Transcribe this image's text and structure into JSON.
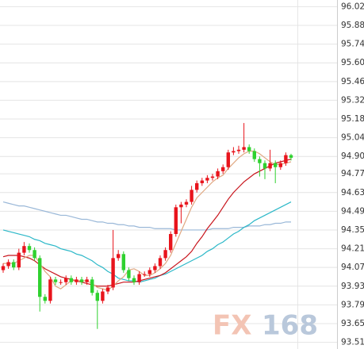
{
  "chart_data": {
    "type": "candlestick",
    "ylim": [
      93.46,
      96.07
    ],
    "yticks": [
      96.02,
      95.88,
      95.74,
      {
        "value": 95.6,
        "label": "95.60"
      },
      95.46,
      95.32,
      95.18,
      95.04,
      {
        "value": 94.9,
        "label": "94.90"
      },
      94.77,
      94.63,
      94.49,
      94.35,
      94.21,
      94.07,
      93.93,
      93.79,
      93.65,
      93.51
    ],
    "grid": true,
    "up_color": "#e8141c",
    "down_color": "#2fd12f",
    "open": [
      94.05,
      94.08,
      94.11,
      94.07,
      94.18,
      94.23,
      94.2,
      94.14,
      93.85,
      93.82,
      93.98,
      93.96,
      93.96,
      93.99,
      93.96,
      93.98,
      93.96,
      93.98,
      93.88,
      93.82,
      93.89,
      93.92,
      94.14,
      94.17,
      94.05,
      93.99,
      93.96,
      94.02,
      94.02,
      94.05,
      94.08,
      94.14,
      94.2,
      94.32,
      94.52,
      94.54,
      94.56,
      94.65,
      94.7,
      94.72,
      94.74,
      94.75,
      94.79,
      94.82,
      94.93,
      94.94,
      94.95,
      94.97,
      94.94,
      94.88,
      94.85,
      94.81,
      94.85,
      94.82,
      94.85,
      94.91
    ],
    "high": [
      94.1,
      94.13,
      94.13,
      94.21,
      94.26,
      94.25,
      94.22,
      94.16,
      93.87,
      94.0,
      94.0,
      93.98,
      94.01,
      94.01,
      94.0,
      94.0,
      94.0,
      94.0,
      93.9,
      93.91,
      93.94,
      94.35,
      94.2,
      94.19,
      94.07,
      94.01,
      94.04,
      94.04,
      94.07,
      94.1,
      94.16,
      94.22,
      94.34,
      94.54,
      94.56,
      94.58,
      94.68,
      94.72,
      94.74,
      94.76,
      94.77,
      94.81,
      94.84,
      94.95,
      94.97,
      94.98,
      95.15,
      94.99,
      94.96,
      94.9,
      94.87,
      94.95,
      94.87,
      94.87,
      94.93,
      94.92
    ],
    "low": [
      94.03,
      94.06,
      94.05,
      94.05,
      94.16,
      94.18,
      94.12,
      93.74,
      93.8,
      93.8,
      93.94,
      93.94,
      93.94,
      93.94,
      93.94,
      93.94,
      93.94,
      93.86,
      93.61,
      93.8,
      93.87,
      93.9,
      94.12,
      94.03,
      93.97,
      93.94,
      93.94,
      94.0,
      94.0,
      94.03,
      94.06,
      94.12,
      94.18,
      94.3,
      94.4,
      94.52,
      94.54,
      94.63,
      94.68,
      94.7,
      94.72,
      94.73,
      94.77,
      94.8,
      94.91,
      94.92,
      94.93,
      94.92,
      94.86,
      94.75,
      94.73,
      94.79,
      94.7,
      94.8,
      94.83,
      94.87
    ],
    "close": [
      94.08,
      94.11,
      94.07,
      94.18,
      94.23,
      94.2,
      94.14,
      93.85,
      93.82,
      93.98,
      93.96,
      93.96,
      93.99,
      93.96,
      93.98,
      93.96,
      93.98,
      93.88,
      93.82,
      93.89,
      93.92,
      94.14,
      94.17,
      94.05,
      93.99,
      93.96,
      94.02,
      94.02,
      94.05,
      94.08,
      94.14,
      94.2,
      94.32,
      94.52,
      94.54,
      94.56,
      94.65,
      94.7,
      94.72,
      94.74,
      94.75,
      94.79,
      94.82,
      94.93,
      94.94,
      94.95,
      94.97,
      94.94,
      94.88,
      94.85,
      94.81,
      94.85,
      94.82,
      94.85,
      94.91,
      94.89
    ],
    "ma": [
      {
        "color": "#9ab8d8",
        "values": [
          94.56,
          94.55,
          94.54,
          94.53,
          94.53,
          94.52,
          94.51,
          94.5,
          94.49,
          94.48,
          94.47,
          94.46,
          94.46,
          94.45,
          94.44,
          94.43,
          94.43,
          94.42,
          94.41,
          94.41,
          94.4,
          94.4,
          94.39,
          94.39,
          94.38,
          94.38,
          94.37,
          94.37,
          94.37,
          94.36,
          94.36,
          94.36,
          94.36,
          94.35,
          94.35,
          94.35,
          94.35,
          94.35,
          94.35,
          94.35,
          94.36,
          94.36,
          94.36,
          94.36,
          94.37,
          94.37,
          94.37,
          94.38,
          94.38,
          94.38,
          94.39,
          94.39,
          94.4,
          94.4,
          94.41,
          94.41
        ]
      },
      {
        "color": "#2cb8c8",
        "values": [
          94.35,
          94.34,
          94.33,
          94.32,
          94.31,
          94.3,
          94.28,
          94.27,
          94.25,
          94.24,
          94.23,
          94.21,
          94.2,
          94.19,
          94.17,
          94.16,
          94.14,
          94.12,
          94.09,
          94.07,
          94.04,
          94.02,
          93.99,
          93.98,
          93.97,
          93.97,
          93.96,
          93.97,
          93.98,
          93.99,
          94.01,
          94.02,
          94.04,
          94.06,
          94.08,
          94.1,
          94.12,
          94.14,
          94.16,
          94.19,
          94.21,
          94.24,
          94.26,
          94.29,
          94.32,
          94.34,
          94.37,
          94.39,
          94.42,
          94.44,
          94.46,
          94.48,
          94.5,
          94.52,
          94.54,
          94.56
        ]
      },
      {
        "color": "#c8141c",
        "values": [
          94.15,
          94.16,
          94.16,
          94.16,
          94.15,
          94.14,
          94.12,
          94.09,
          94.06,
          94.04,
          94.02,
          94.0,
          93.99,
          93.98,
          93.97,
          93.96,
          93.95,
          93.94,
          93.93,
          93.93,
          93.93,
          93.94,
          93.95,
          93.96,
          93.96,
          93.96,
          93.97,
          93.98,
          93.99,
          94.0,
          94.01,
          94.03,
          94.06,
          94.09,
          94.12,
          94.15,
          94.19,
          94.25,
          94.3,
          94.36,
          94.41,
          94.46,
          94.52,
          94.58,
          94.63,
          94.67,
          94.71,
          94.74,
          94.77,
          94.79,
          94.81,
          94.83,
          94.85,
          94.86,
          94.87,
          94.88
        ]
      },
      {
        "color": "#e0a882",
        "values": [
          94.1,
          94.1,
          94.1,
          94.12,
          94.14,
          94.16,
          94.16,
          94.1,
          94.04,
          94.0,
          93.93,
          93.91,
          93.94,
          93.97,
          93.97,
          93.97,
          93.97,
          93.95,
          93.92,
          93.91,
          93.9,
          93.93,
          93.97,
          94.0,
          94.05,
          94.06,
          94.04,
          94.01,
          94.01,
          94.03,
          94.06,
          94.1,
          94.16,
          94.25,
          94.34,
          94.43,
          94.52,
          94.59,
          94.63,
          94.67,
          94.71,
          94.74,
          94.76,
          94.81,
          94.85,
          94.89,
          94.92,
          94.94,
          94.94,
          94.92,
          94.89,
          94.86,
          94.84,
          94.84,
          94.85,
          94.86
        ]
      }
    ],
    "watermark": [
      "FX",
      "168"
    ]
  }
}
